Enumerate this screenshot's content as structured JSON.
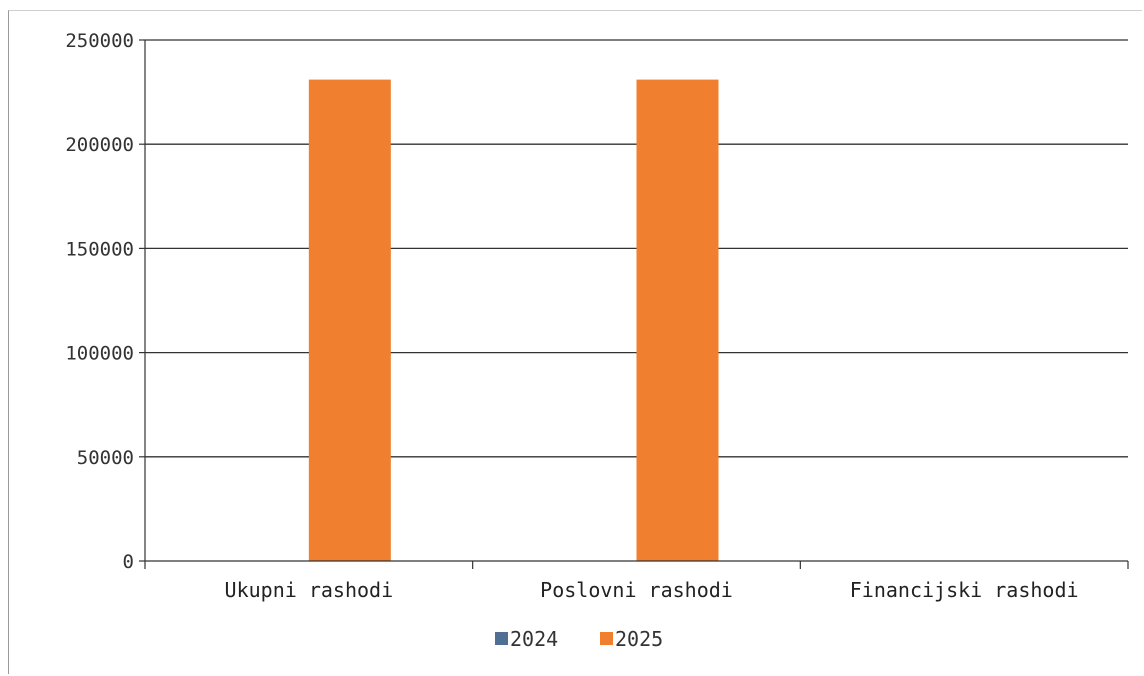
{
  "chart_data": {
    "type": "bar",
    "title": "",
    "xlabel": "",
    "ylabel": "",
    "categories": [
      "Ukupni rashodi",
      "Poslovni rashodi",
      "Financijski rashodi"
    ],
    "series": [
      {
        "name": "2024",
        "color": "#4f6f95",
        "values": [
          0,
          0,
          0
        ]
      },
      {
        "name": "2025",
        "color": "#f07f2f",
        "values": [
          231000,
          231000,
          0
        ]
      }
    ],
    "ylim": [
      0,
      250000
    ],
    "yticks": [
      "0",
      "50000",
      "100000",
      "150000",
      "200000",
      "250000"
    ],
    "grid": true,
    "legend": "bottom"
  }
}
